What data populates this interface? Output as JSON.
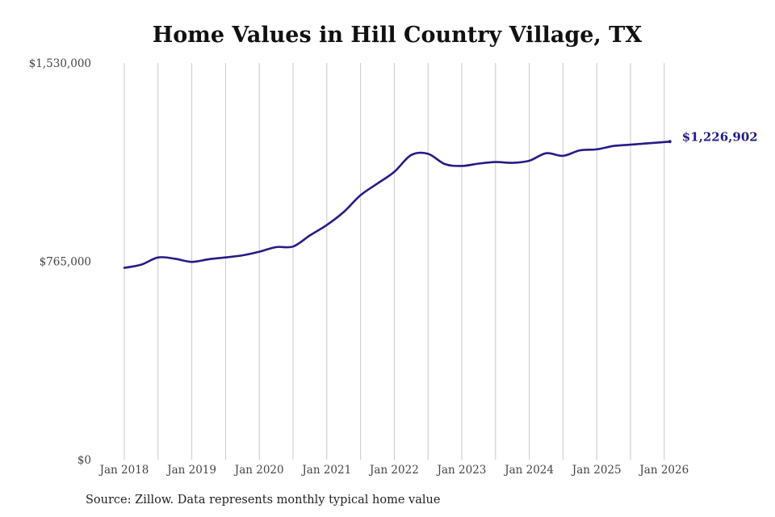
{
  "colors": {
    "line": "#241c86",
    "grid": "#c8c8c8",
    "text": "#444444"
  },
  "chart_data": {
    "type": "line",
    "title": "Home Values in Hill Country Village, TX",
    "xlabel": "",
    "ylabel": "",
    "y_ticks": [
      {
        "value": 0,
        "label": "$0"
      },
      {
        "value": 765000,
        "label": "$765,000"
      },
      {
        "value": 1530000,
        "label": "$1,530,000"
      }
    ],
    "ylim": [
      0,
      1530000
    ],
    "x_ticks": [
      {
        "value": "2018-01",
        "label": "Jan 2018"
      },
      {
        "value": "2018-07",
        "label": ""
      },
      {
        "value": "2019-01",
        "label": "Jan 2019"
      },
      {
        "value": "2019-07",
        "label": ""
      },
      {
        "value": "2020-01",
        "label": "Jan 2020"
      },
      {
        "value": "2020-07",
        "label": ""
      },
      {
        "value": "2021-01",
        "label": "Jan 2021"
      },
      {
        "value": "2021-07",
        "label": ""
      },
      {
        "value": "2022-01",
        "label": "Jan 2022"
      },
      {
        "value": "2022-07",
        "label": ""
      },
      {
        "value": "2023-01",
        "label": "Jan 2023"
      },
      {
        "value": "2023-07",
        "label": ""
      },
      {
        "value": "2024-01",
        "label": "Jan 2024"
      },
      {
        "value": "2024-07",
        "label": ""
      },
      {
        "value": "2025-01",
        "label": "Jan 2025"
      },
      {
        "value": "2025-07",
        "label": ""
      },
      {
        "value": "2026-01",
        "label": "Jan 2026"
      }
    ],
    "grid": "vertical",
    "series": [
      {
        "points": [
          [
            "2018-01",
            740000
          ],
          [
            "2018-04",
            752000
          ],
          [
            "2018-07",
            780000
          ],
          [
            "2018-10",
            775000
          ],
          [
            "2019-01",
            763000
          ],
          [
            "2019-04",
            773000
          ],
          [
            "2019-07",
            780000
          ],
          [
            "2019-10",
            788000
          ],
          [
            "2020-01",
            802000
          ],
          [
            "2020-04",
            820000
          ],
          [
            "2020-07",
            822000
          ],
          [
            "2020-10",
            865000
          ],
          [
            "2021-01",
            905000
          ],
          [
            "2021-04",
            955000
          ],
          [
            "2021-07",
            1020000
          ],
          [
            "2021-10",
            1065000
          ],
          [
            "2022-01",
            1110000
          ],
          [
            "2022-04",
            1175000
          ],
          [
            "2022-07",
            1180000
          ],
          [
            "2022-10",
            1140000
          ],
          [
            "2023-01",
            1133000
          ],
          [
            "2023-04",
            1142000
          ],
          [
            "2023-07",
            1148000
          ],
          [
            "2023-10",
            1145000
          ],
          [
            "2024-01",
            1153000
          ],
          [
            "2024-04",
            1182000
          ],
          [
            "2024-07",
            1172000
          ],
          [
            "2024-10",
            1193000
          ],
          [
            "2025-01",
            1197000
          ],
          [
            "2025-04",
            1210000
          ],
          [
            "2025-07",
            1215000
          ],
          [
            "2025-10",
            1220000
          ],
          [
            "2026-02",
            1226902
          ]
        ],
        "end_label": "$1,226,902"
      }
    ]
  },
  "source_note": "Source: Zillow. Data represents monthly typical home value"
}
